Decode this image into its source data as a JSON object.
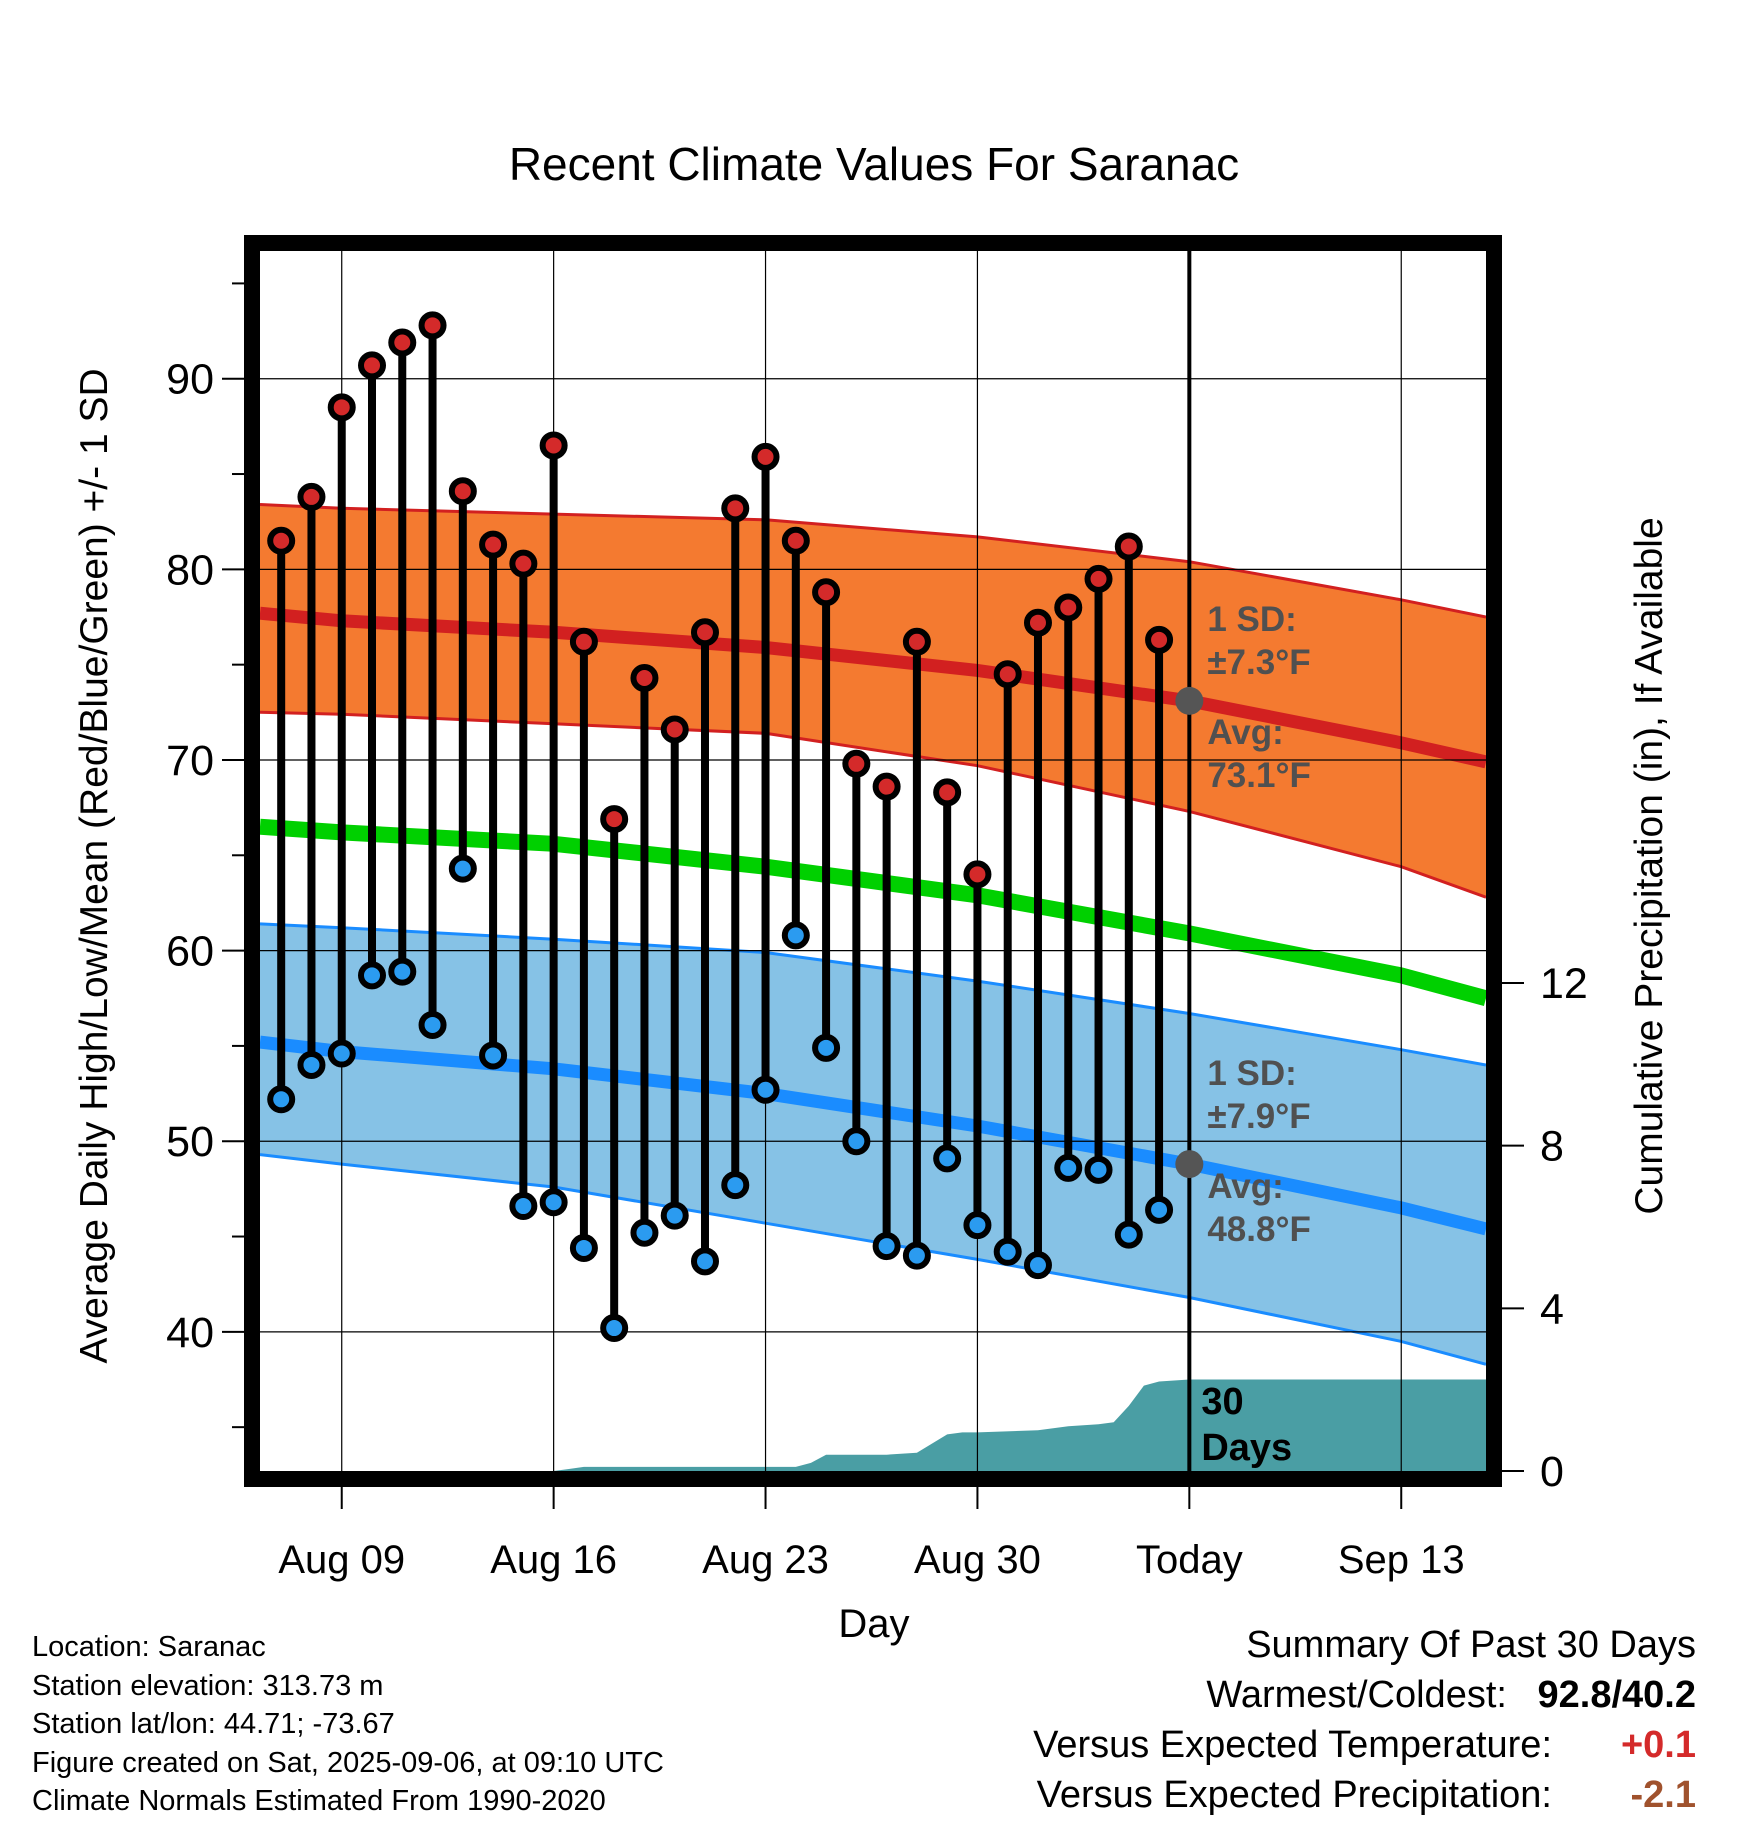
{
  "chart_data": {
    "type": "line",
    "title": "Recent Climate Values For Saranac",
    "xlabel": "Day",
    "ylabel_left": "Average Daily High/Low/Mean (Red/Blue/Green) +/- 1 SD",
    "ylabel_right": "Cumulative Precipitation (in), If Available",
    "x_ticks": [
      {
        "day": 9,
        "label": "Aug 09"
      },
      {
        "day": 16,
        "label": "Aug 16"
      },
      {
        "day": 23,
        "label": "Aug 23"
      },
      {
        "day": 30,
        "label": "Aug 30"
      },
      {
        "day": 37,
        "label": "Today"
      },
      {
        "day": 44,
        "label": "Sep 13"
      }
    ],
    "xlim": [
      6.3,
      46.8
    ],
    "ylim_left": [
      32.7,
      96.7
    ],
    "ylim_right": [
      0,
      30
    ],
    "y_ticks_left": [
      40,
      50,
      60,
      70,
      80,
      90
    ],
    "y_ticks_right": [
      0,
      4,
      8,
      12
    ],
    "grid": true,
    "today_day": 37,
    "daily": {
      "days": [
        7,
        8,
        9,
        10,
        11,
        12,
        13,
        14,
        15,
        16,
        17,
        18,
        19,
        20,
        21,
        22,
        23,
        24,
        25,
        26,
        27,
        28,
        29,
        30,
        31,
        32,
        33,
        34,
        35,
        36
      ],
      "high": [
        81.5,
        83.8,
        88.5,
        90.7,
        91.9,
        92.8,
        84.1,
        81.3,
        80.3,
        86.5,
        76.2,
        66.9,
        74.3,
        71.6,
        76.7,
        83.2,
        85.9,
        81.5,
        78.8,
        69.8,
        68.6,
        76.2,
        68.3,
        64.0,
        74.5,
        77.2,
        78.0,
        79.5,
        81.2,
        76.3
      ],
      "low": [
        52.2,
        54.0,
        54.6,
        58.7,
        58.9,
        56.1,
        64.3,
        54.5,
        46.6,
        46.8,
        44.4,
        40.2,
        45.2,
        46.1,
        43.7,
        47.7,
        52.7,
        60.8,
        54.9,
        50.0,
        44.5,
        44.0,
        49.1,
        45.6,
        44.2,
        43.5,
        48.6,
        48.5,
        45.1,
        46.4
      ]
    },
    "normals": {
      "days": [
        6.3,
        9,
        16,
        23,
        30,
        37,
        44,
        46.8
      ],
      "high_avg": [
        77.7,
        77.3,
        76.7,
        75.9,
        74.7,
        73.1,
        70.9,
        69.9
      ],
      "high_sd_upper": [
        83.4,
        83.2,
        82.9,
        82.6,
        81.7,
        80.4,
        78.4,
        77.5
      ],
      "high_sd_lower": [
        72.5,
        72.4,
        71.9,
        71.4,
        69.7,
        67.3,
        64.4,
        62.8
      ],
      "mean_avg": [
        66.5,
        66.2,
        65.6,
        64.4,
        62.9,
        60.9,
        58.7,
        57.5
      ],
      "low_avg": [
        55.2,
        54.7,
        53.8,
        52.5,
        50.8,
        48.8,
        46.5,
        45.4
      ],
      "low_sd_upper": [
        61.4,
        61.2,
        60.6,
        59.9,
        58.4,
        56.7,
        54.8,
        54.0
      ],
      "low_sd_lower": [
        49.3,
        48.8,
        47.6,
        45.7,
        43.8,
        41.8,
        39.5,
        38.3
      ]
    },
    "precip": {
      "days": [
        6.3,
        14,
        16,
        16.5,
        17,
        24,
        24.5,
        25,
        27,
        28,
        29,
        29.5,
        30,
        32,
        33,
        34,
        34.5,
        35,
        35.5,
        36,
        37,
        46.8
      ],
      "cumulative": [
        0,
        0,
        0,
        0.05,
        0.1,
        0.1,
        0.2,
        0.4,
        0.4,
        0.45,
        0.9,
        0.95,
        0.95,
        1.0,
        1.1,
        1.15,
        1.2,
        1.6,
        2.1,
        2.2,
        2.25,
        2.25
      ]
    },
    "annotations": {
      "high_sd": "1 SD:",
      "high_sd_value": "±7.3°F",
      "high_avg": "Avg:",
      "high_avg_value": "73.1°F",
      "low_sd": "1 SD:",
      "low_sd_value": "±7.9°F",
      "low_avg": "Avg:",
      "low_avg_value": "48.8°F",
      "window_value": "30",
      "window_unit": "Days"
    },
    "colors": {
      "high_band": "#f47a30",
      "high_line": "#d22020",
      "mean_line": "#00d000",
      "low_band": "#86c2e6",
      "low_line": "#1a8cff",
      "precip": "#4a9ea4",
      "high_marker": "#d42a2a",
      "low_marker": "#2b9bf0",
      "annotation": "#505050",
      "avg_marker": "#555555"
    }
  },
  "info": {
    "location": "Location: Saranac",
    "elevation": "Station elevation: 313.73 m",
    "latlon": "Station lat/lon: 44.71; -73.67",
    "created": "Figure created on Sat, 2025-09-06, at 09:10 UTC",
    "normals": "Climate Normals Estimated From 1990-2020"
  },
  "summary": {
    "heading": "Summary Of Past 30 Days",
    "warm_cold_label": "Warmest/Coldest:",
    "warm_cold_value": "92.8/40.2",
    "temp_label": "Versus Expected Temperature:",
    "temp_value": "+0.1",
    "temp_color": "#d42a2a",
    "precip_label": "Versus Expected Precipitation:",
    "precip_value": "-2.1",
    "precip_color": "#a0522d"
  }
}
